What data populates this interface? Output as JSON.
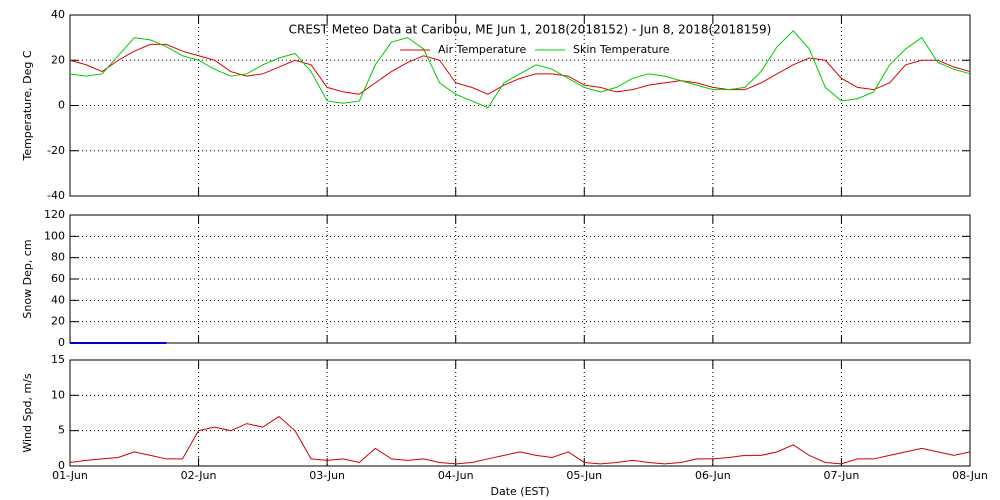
{
  "chart_data": [
    {
      "type": "line",
      "title": "CREST Meteo Data at Caribou, ME   Jun  1, 2018(2018152) - Jun  8, 2018(2018159)",
      "ylabel": "Temperature, Deg C",
      "x": [
        0,
        0.125,
        0.25,
        0.375,
        0.5,
        0.625,
        0.75,
        0.875,
        1,
        1.125,
        1.25,
        1.375,
        1.5,
        1.625,
        1.75,
        1.875,
        2,
        2.125,
        2.25,
        2.375,
        2.5,
        2.625,
        2.75,
        2.875,
        3,
        3.125,
        3.25,
        3.375,
        3.5,
        3.625,
        3.75,
        3.875,
        4,
        4.125,
        4.25,
        4.375,
        4.5,
        4.625,
        4.75,
        4.875,
        5,
        5.125,
        5.25,
        5.375,
        5.5,
        5.625,
        5.75,
        5.875,
        6,
        6.125,
        6.25,
        6.375,
        6.5,
        6.625,
        6.75,
        6.875,
        7
      ],
      "series": [
        {
          "name": "Air Temperature",
          "color": "#dd0000",
          "values": [
            20,
            18,
            15,
            20,
            24,
            27,
            27,
            24,
            22,
            20,
            15,
            13,
            14,
            17,
            20,
            18,
            8,
            6,
            5,
            10,
            15,
            19,
            22,
            20,
            10,
            8,
            5,
            9,
            12,
            14,
            14,
            13,
            9,
            8,
            6,
            7,
            9,
            10,
            11,
            10,
            8,
            7,
            7,
            10,
            14,
            18,
            21,
            20,
            12,
            8,
            7,
            10,
            18,
            20,
            20,
            17,
            15
          ]
        },
        {
          "name": "Skin Temperature",
          "color": "#00cc00",
          "values": [
            14,
            13,
            14,
            22,
            30,
            29,
            26,
            22,
            20,
            16,
            13,
            14,
            18,
            21,
            23,
            15,
            2,
            1,
            2,
            18,
            28,
            30,
            25,
            10,
            5,
            2,
            -1,
            10,
            14,
            18,
            16,
            12,
            8,
            6,
            8,
            12,
            14,
            13,
            11,
            9,
            7,
            7,
            8,
            15,
            26,
            33,
            25,
            8,
            2,
            3,
            6,
            18,
            25,
            30,
            19,
            16,
            14
          ]
        }
      ],
      "xlim": [
        0,
        7
      ],
      "xticks": [
        0,
        1,
        2,
        3,
        4,
        5,
        6,
        7
      ],
      "ylim": [
        -40,
        40
      ],
      "yticks": [
        -40,
        -20,
        0,
        20,
        40
      ],
      "grid": true
    },
    {
      "type": "line",
      "ylabel": "Snow Dep, cm",
      "x": [
        0,
        0.125,
        0.25,
        0.375,
        0.5,
        0.625,
        0.75
      ],
      "series": [
        {
          "color": "#0000cc",
          "values": [
            0,
            0,
            0,
            0,
            0,
            0,
            0
          ]
        }
      ],
      "xlim": [
        0,
        7
      ],
      "xticks": [
        0,
        1,
        2,
        3,
        4,
        5,
        6,
        7
      ],
      "ylim": [
        0,
        120
      ],
      "yticks": [
        0,
        20,
        40,
        60,
        80,
        100,
        120
      ],
      "grid": true
    },
    {
      "type": "line",
      "ylabel": "Wind Spd, m/s",
      "xlabel": "Date (EST)",
      "x": [
        0,
        0.125,
        0.25,
        0.375,
        0.5,
        0.625,
        0.75,
        0.875,
        1,
        1.125,
        1.25,
        1.375,
        1.5,
        1.625,
        1.75,
        1.875,
        2,
        2.125,
        2.25,
        2.375,
        2.5,
        2.625,
        2.75,
        2.875,
        3,
        3.125,
        3.25,
        3.375,
        3.5,
        3.625,
        3.75,
        3.875,
        4,
        4.125,
        4.25,
        4.375,
        4.5,
        4.625,
        4.75,
        4.875,
        5,
        5.125,
        5.25,
        5.375,
        5.5,
        5.625,
        5.75,
        5.875,
        6,
        6.125,
        6.25,
        6.375,
        6.5,
        6.625,
        6.75,
        6.875,
        7
      ],
      "series": [
        {
          "color": "#cc0000",
          "values": [
            0.5,
            0.8,
            1,
            1.2,
            2,
            1.5,
            1,
            1,
            5,
            5.5,
            5,
            6,
            5.5,
            7,
            5,
            1,
            0.8,
            1,
            0.5,
            2.5,
            1,
            0.8,
            1,
            0.5,
            0.3,
            0.5,
            1,
            1.5,
            2,
            1.5,
            1.2,
            2,
            0.5,
            0.3,
            0.5,
            0.8,
            0.5,
            0.3,
            0.5,
            1,
            1,
            1.2,
            1.5,
            1.5,
            2,
            3,
            1.5,
            0.5,
            0.3,
            1,
            1,
            1.5,
            2,
            2.5,
            2,
            1.5,
            2
          ]
        }
      ],
      "xlim": [
        0,
        7
      ],
      "xticks": [
        {
          "value": 0,
          "label": "01-Jun"
        },
        {
          "value": 1,
          "label": "02-Jun"
        },
        {
          "value": 2,
          "label": "03-Jun"
        },
        {
          "value": 3,
          "label": "04-Jun"
        },
        {
          "value": 4,
          "label": "05-Jun"
        },
        {
          "value": 5,
          "label": "06-Jun"
        },
        {
          "value": 6,
          "label": "07-Jun"
        },
        {
          "value": 7,
          "label": "08-Jun"
        }
      ],
      "ylim": [
        0,
        15
      ],
      "yticks": [
        0,
        5,
        10,
        15
      ],
      "grid": true
    }
  ]
}
